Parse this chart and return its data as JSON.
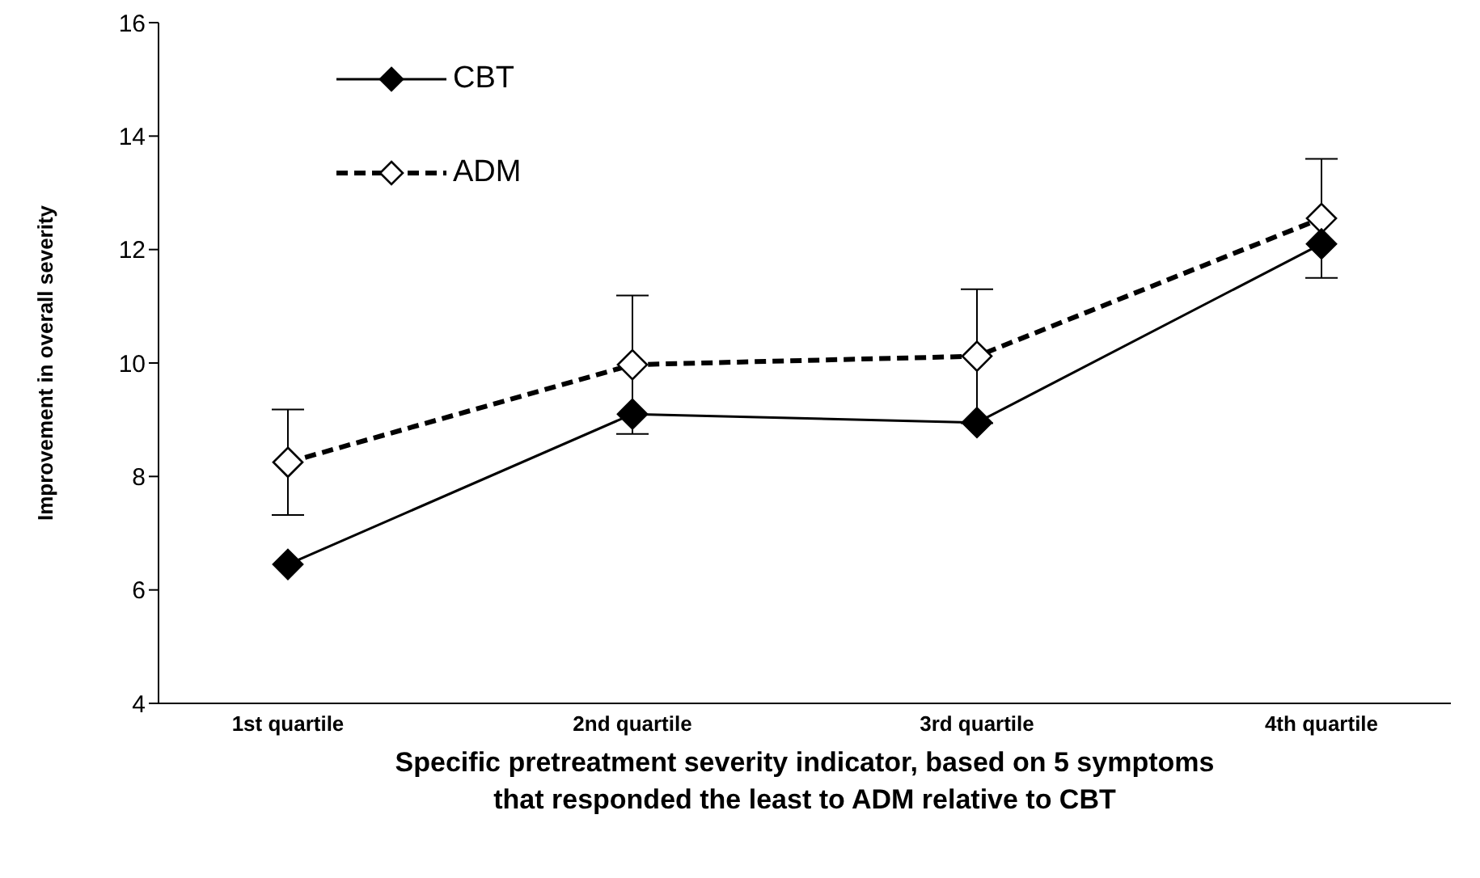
{
  "chart_data": {
    "type": "line",
    "xlabel": "Specific pretreatment severity indicator, based on 5 symptoms\nthat responded the least to ADM relative to CBT",
    "ylabel": "Improvement  in overall severity",
    "categories": [
      "1st quartile",
      "2nd quartile",
      "3rd quartile",
      "4th quartile"
    ],
    "series": [
      {
        "name": "CBT",
        "color": "#000000",
        "values": [
          6.45,
          9.1,
          8.95,
          12.1
        ],
        "line_style": "solid"
      },
      {
        "name": "ADM",
        "color": "#000000",
        "values": [
          8.25,
          9.97,
          10.12,
          12.55
        ],
        "errors": [
          0.93,
          1.22,
          1.18,
          1.05
        ],
        "line_style": "dashed"
      }
    ],
    "ylim": [
      4,
      16
    ],
    "yticks": [
      4,
      6,
      8,
      10,
      12,
      14,
      16
    ],
    "legend": "top left",
    "marker": "diamond"
  }
}
